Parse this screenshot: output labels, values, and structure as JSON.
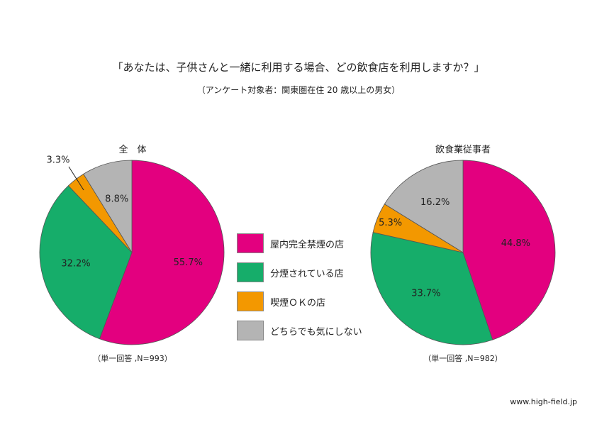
{
  "title": "「あなたは、子供さんと一緒に利用する場合、どの飲食店を利用しますか？」",
  "subtitle": "（アンケート対象者：関東圏在住 20 歳以上の男女）",
  "legend": [
    {
      "label": "屋内完全禁煙の店",
      "color": "#e3007f"
    },
    {
      "label": "分煙されている店",
      "color": "#16ad6a"
    },
    {
      "label": "喫煙ＯＫの店",
      "color": "#f39800"
    },
    {
      "label": "どちらでも気にしない",
      "color": "#b4b4b4"
    }
  ],
  "chart_data": [
    {
      "type": "pie",
      "title": "全　体",
      "note": "（単一回答 ,N=993）",
      "labels": [
        "屋内完全禁煙の店",
        "分煙されている店",
        "喫煙ＯＫの店",
        "どちらでも気にしない"
      ],
      "values": [
        55.7,
        32.2,
        3.3,
        8.8
      ],
      "value_labels": [
        "55.7%",
        "32.2%",
        "3.3%",
        "8.8%"
      ]
    },
    {
      "type": "pie",
      "title": "飲食業従事者",
      "note": "（単一回答 ,N=982）",
      "labels": [
        "屋内完全禁煙の店",
        "分煙されている店",
        "喫煙ＯＫの店",
        "どちらでも気にしない"
      ],
      "values": [
        44.8,
        33.7,
        5.3,
        16.2
      ],
      "value_labels": [
        "44.8%",
        "33.7%",
        "5.3%",
        "16.2%"
      ]
    }
  ],
  "source": "www.high-field.jp"
}
